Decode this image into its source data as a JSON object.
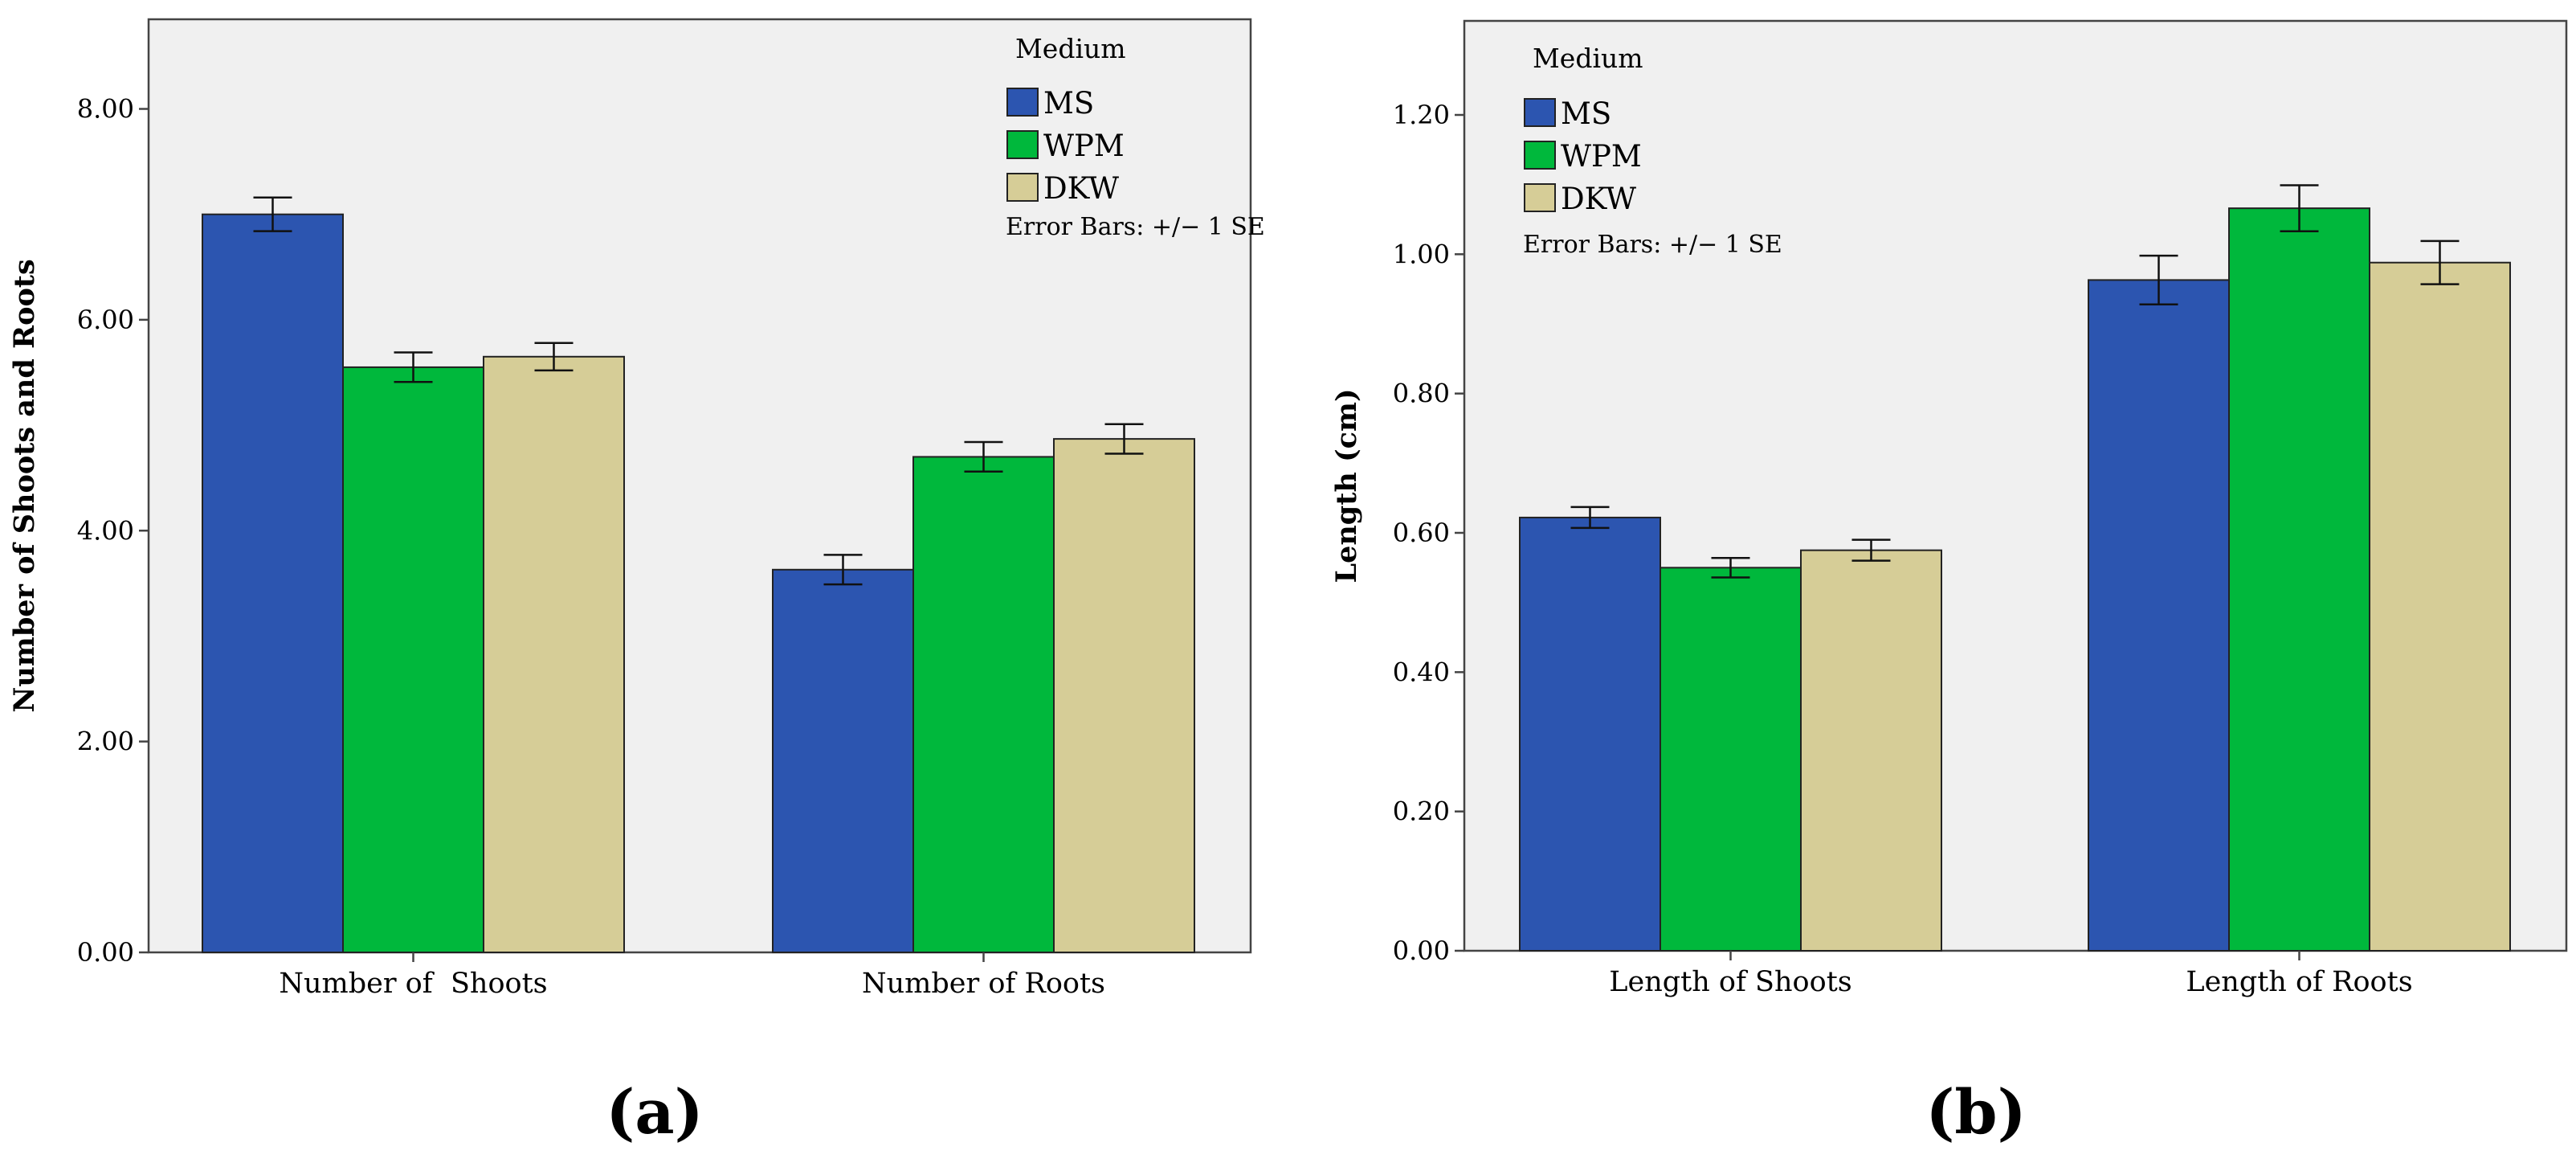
{
  "colors": {
    "MS": "#2c55b0",
    "WPM": "#00b83c",
    "DKW": "#d6cd97",
    "plot_bg": "#f0f0f0"
  },
  "chart_data": [
    {
      "type": "bar",
      "panel_label": "(a)",
      "title": "",
      "xlabel": "",
      "ylabel": "Number of Shoots and Roots",
      "ylim": [
        0,
        8.85
      ],
      "yticks": [
        "0.00",
        "2.00",
        "4.00",
        "6.00",
        "8.00"
      ],
      "ytick_values": [
        0,
        2,
        4,
        6,
        8
      ],
      "categories": [
        "Number of  Shoots",
        "Number of Roots"
      ],
      "series": [
        {
          "name": "MS",
          "values": [
            7.0,
            3.63
          ],
          "se": [
            0.16,
            0.14
          ]
        },
        {
          "name": "WPM",
          "values": [
            5.55,
            4.7
          ],
          "se": [
            0.14,
            0.14
          ]
        },
        {
          "name": "DKW",
          "values": [
            5.65,
            4.87
          ],
          "se": [
            0.13,
            0.14
          ]
        }
      ],
      "legend": {
        "title": "Medium",
        "note": "Error Bars: +/− 1 SE",
        "position": "top-right"
      }
    },
    {
      "type": "bar",
      "panel_label": "(b)",
      "title": "",
      "xlabel": "",
      "ylabel": "Length (cm)",
      "ylim": [
        0,
        1.335
      ],
      "yticks": [
        "0.00",
        "0.20",
        "0.40",
        "0.60",
        "0.80",
        "1.00",
        "1.20"
      ],
      "ytick_values": [
        0,
        0.2,
        0.4,
        0.6,
        0.8,
        1.0,
        1.2
      ],
      "categories": [
        "Length of Shoots",
        "Length of Roots"
      ],
      "series": [
        {
          "name": "MS",
          "values": [
            0.622,
            0.963
          ],
          "se": [
            0.015,
            0.035
          ]
        },
        {
          "name": "WPM",
          "values": [
            0.55,
            1.066
          ],
          "se": [
            0.014,
            0.033
          ]
        },
        {
          "name": "DKW",
          "values": [
            0.575,
            0.988
          ],
          "se": [
            0.015,
            0.031
          ]
        }
      ],
      "legend": {
        "title": "Medium",
        "note": "Error Bars: +/− 1 SE",
        "position": "top-left"
      }
    }
  ]
}
